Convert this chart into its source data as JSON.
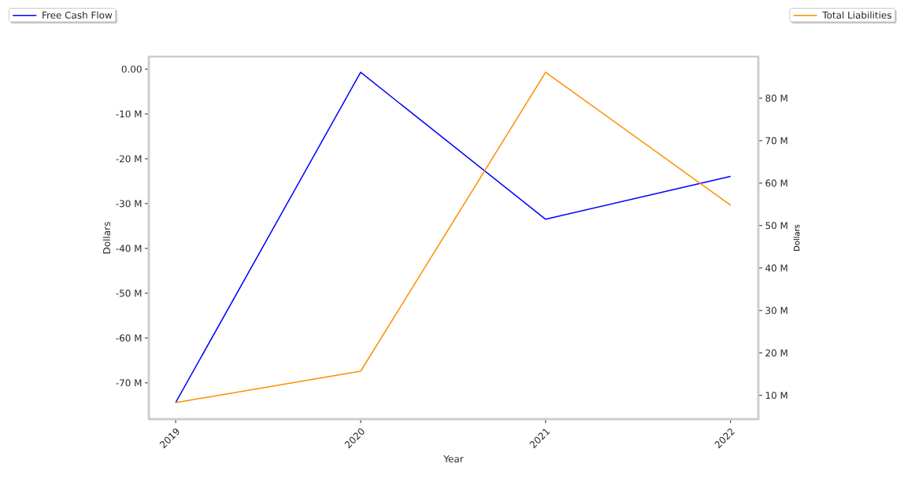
{
  "chart_data": {
    "type": "line",
    "xlabel": "Year",
    "ylabel": "Dollars",
    "y2label": "Dollars",
    "x": [
      2019,
      2020,
      2021,
      2022
    ],
    "series": [
      {
        "name": "Free Cash Flow",
        "color": "#0000ff",
        "values": [
          -74.4,
          -0.7,
          -33.5,
          -23.9
        ]
      },
      {
        "name": "Total Liabilities",
        "color": "#ff8c00",
        "axis": "y2",
        "values": [
          8.3,
          15.7,
          86.1,
          54.8
        ]
      }
    ],
    "xlim": [
      2018.855,
      2022.15
    ],
    "xticks": [
      2019,
      2020,
      2021,
      2022
    ],
    "ylim": [
      -78.1,
      2.8
    ],
    "yticks": [
      {
        "value": 0,
        "label": "0.00"
      },
      {
        "value": -10,
        "label": "-10 M"
      },
      {
        "value": -20,
        "label": "-20 M"
      },
      {
        "value": -30,
        "label": "-30 M"
      },
      {
        "value": -40,
        "label": "-40 M"
      },
      {
        "value": -50,
        "label": "-50 M"
      },
      {
        "value": -60,
        "label": "-60 M"
      },
      {
        "value": -70,
        "label": "-70 M"
      }
    ],
    "y2lim": [
      4.4,
      89.8
    ],
    "y2ticks": [
      {
        "value": 10,
        "label": "10 M"
      },
      {
        "value": 20,
        "label": "20 M"
      },
      {
        "value": 30,
        "label": "30 M"
      },
      {
        "value": 40,
        "label": "40 M"
      },
      {
        "value": 50,
        "label": "50 M"
      },
      {
        "value": 60,
        "label": "60 M"
      },
      {
        "value": 70,
        "label": "70 M"
      },
      {
        "value": 80,
        "label": "80 M"
      }
    ],
    "legend": "top"
  }
}
